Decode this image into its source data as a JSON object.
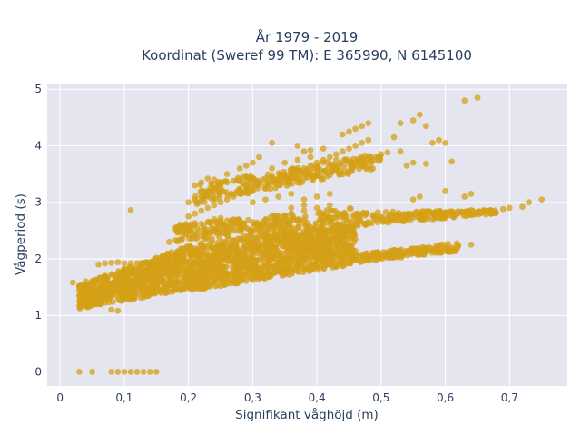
{
  "chart_data": {
    "type": "scatter",
    "title_line1": "År 1979 - 2019",
    "title_line2": "Koordinat (Sweref 99 TM): E 365990, N 6145100",
    "xlabel": "Signifikant våghöjd (m)",
    "ylabel": "Vågperiod (s)",
    "xlim": [
      -0.02,
      0.79
    ],
    "ylim": [
      -0.25,
      5.1
    ],
    "x_ticks": [
      0,
      0.1,
      0.2,
      0.3,
      0.4,
      0.5,
      0.6,
      0.7
    ],
    "x_tick_labels": [
      "0",
      "0,1",
      "0,2",
      "0,3",
      "0,4",
      "0,5",
      "0,6",
      "0,7"
    ],
    "y_ticks": [
      0,
      1,
      2,
      3,
      4,
      5
    ],
    "y_tick_labels": [
      "0",
      "1",
      "2",
      "3",
      "4",
      "5"
    ],
    "grid": true,
    "legend": "none",
    "marker_color": "#d4a017",
    "background_color": "#e5e5f0",
    "series": [
      {
        "points": [
          [
            0.03,
            0.0
          ],
          [
            0.05,
            0.0
          ],
          [
            0.08,
            0.0
          ],
          [
            0.09,
            0.0
          ],
          [
            0.1,
            0.0
          ],
          [
            0.11,
            0.0
          ],
          [
            0.12,
            0.0
          ],
          [
            0.13,
            0.0
          ],
          [
            0.14,
            0.0
          ],
          [
            0.15,
            0.0
          ],
          [
            0.02,
            1.58
          ],
          [
            0.03,
            1.52
          ],
          [
            0.04,
            1.6
          ],
          [
            0.05,
            1.55
          ],
          [
            0.06,
            1.48
          ],
          [
            0.07,
            1.45
          ],
          [
            0.08,
            1.1
          ],
          [
            0.09,
            1.08
          ],
          [
            0.06,
            1.9
          ],
          [
            0.07,
            1.92
          ],
          [
            0.08,
            1.93
          ],
          [
            0.09,
            1.94
          ],
          [
            0.1,
            1.92
          ],
          [
            0.11,
            1.92
          ],
          [
            0.12,
            1.92
          ],
          [
            0.13,
            1.93
          ],
          [
            0.14,
            1.94
          ],
          [
            0.15,
            1.95
          ],
          [
            0.16,
            1.96
          ],
          [
            0.07,
            1.7
          ],
          [
            0.08,
            1.73
          ],
          [
            0.09,
            1.72
          ],
          [
            0.1,
            1.73
          ],
          [
            0.11,
            1.75
          ],
          [
            0.12,
            1.76
          ],
          [
            0.13,
            1.77
          ],
          [
            0.11,
            2.86
          ],
          [
            0.17,
            2.3
          ],
          [
            0.18,
            2.33
          ],
          [
            0.19,
            2.35
          ],
          [
            0.2,
            2.55
          ],
          [
            0.21,
            2.6
          ],
          [
            0.22,
            2.62
          ],
          [
            0.23,
            2.65
          ],
          [
            0.24,
            2.7
          ],
          [
            0.25,
            2.72
          ],
          [
            0.2,
            2.75
          ],
          [
            0.21,
            2.8
          ],
          [
            0.22,
            2.85
          ],
          [
            0.23,
            2.9
          ],
          [
            0.24,
            2.95
          ],
          [
            0.25,
            3.0
          ],
          [
            0.26,
            3.05
          ],
          [
            0.27,
            3.1
          ],
          [
            0.28,
            3.15
          ],
          [
            0.29,
            3.18
          ],
          [
            0.3,
            3.2
          ],
          [
            0.2,
            3.0
          ],
          [
            0.21,
            3.05
          ],
          [
            0.22,
            3.1
          ],
          [
            0.23,
            3.2
          ],
          [
            0.24,
            3.25
          ],
          [
            0.25,
            3.3
          ],
          [
            0.26,
            3.35
          ],
          [
            0.27,
            3.38
          ],
          [
            0.28,
            3.4
          ],
          [
            0.29,
            3.45
          ],
          [
            0.21,
            3.3
          ],
          [
            0.22,
            3.35
          ],
          [
            0.23,
            3.42
          ],
          [
            0.24,
            3.4
          ],
          [
            0.26,
            3.5
          ],
          [
            0.28,
            3.6
          ],
          [
            0.29,
            3.65
          ],
          [
            0.3,
            3.7
          ],
          [
            0.31,
            3.8
          ],
          [
            0.32,
            3.3
          ],
          [
            0.33,
            3.35
          ],
          [
            0.34,
            3.4
          ],
          [
            0.35,
            3.45
          ],
          [
            0.36,
            3.5
          ],
          [
            0.37,
            3.55
          ],
          [
            0.38,
            3.6
          ],
          [
            0.39,
            3.65
          ],
          [
            0.4,
            3.7
          ],
          [
            0.41,
            3.75
          ],
          [
            0.42,
            3.8
          ],
          [
            0.43,
            3.85
          ],
          [
            0.44,
            3.9
          ],
          [
            0.45,
            3.95
          ],
          [
            0.46,
            4.0
          ],
          [
            0.47,
            4.05
          ],
          [
            0.48,
            4.1
          ],
          [
            0.33,
            3.6
          ],
          [
            0.35,
            3.7
          ],
          [
            0.37,
            3.75
          ],
          [
            0.39,
            3.8
          ],
          [
            0.41,
            3.7
          ],
          [
            0.43,
            3.75
          ],
          [
            0.45,
            3.7
          ],
          [
            0.47,
            3.72
          ],
          [
            0.49,
            3.75
          ],
          [
            0.33,
            4.05
          ],
          [
            0.37,
            4.0
          ],
          [
            0.38,
            3.9
          ],
          [
            0.39,
            3.92
          ],
          [
            0.41,
            3.95
          ],
          [
            0.44,
            4.2
          ],
          [
            0.45,
            4.25
          ],
          [
            0.46,
            4.3
          ],
          [
            0.47,
            4.35
          ],
          [
            0.48,
            4.4
          ],
          [
            0.5,
            3.85
          ],
          [
            0.51,
            3.88
          ],
          [
            0.52,
            4.15
          ],
          [
            0.53,
            3.9
          ],
          [
            0.54,
            3.65
          ],
          [
            0.55,
            4.45
          ],
          [
            0.56,
            4.55
          ],
          [
            0.57,
            4.35
          ],
          [
            0.58,
            4.05
          ],
          [
            0.59,
            4.1
          ],
          [
            0.6,
            4.05
          ],
          [
            0.61,
            3.72
          ],
          [
            0.53,
            4.4
          ],
          [
            0.55,
            3.7
          ],
          [
            0.57,
            3.68
          ],
          [
            0.63,
            4.8
          ],
          [
            0.65,
            4.85
          ],
          [
            0.3,
            3.0
          ],
          [
            0.32,
            3.05
          ],
          [
            0.34,
            3.1
          ],
          [
            0.36,
            3.15
          ],
          [
            0.38,
            3.05
          ],
          [
            0.4,
            3.1
          ],
          [
            0.42,
            3.15
          ],
          [
            0.36,
            2.9
          ],
          [
            0.38,
            2.95
          ],
          [
            0.55,
            3.05
          ],
          [
            0.56,
            3.1
          ],
          [
            0.6,
            3.2
          ],
          [
            0.63,
            3.1
          ],
          [
            0.64,
            3.15
          ],
          [
            0.64,
            2.25
          ],
          [
            0.7,
            2.9
          ],
          [
            0.73,
            3.0
          ],
          [
            0.75,
            3.05
          ],
          [
            0.72,
            2.92
          ],
          [
            0.69,
            2.88
          ],
          [
            0.67,
            2.86
          ],
          [
            0.66,
            2.85
          ],
          [
            0.22,
            2.4
          ],
          [
            0.24,
            2.5
          ],
          [
            0.26,
            2.55
          ],
          [
            0.28,
            2.6
          ],
          [
            0.3,
            2.65
          ],
          [
            0.32,
            2.7
          ],
          [
            0.34,
            2.75
          ],
          [
            0.36,
            2.8
          ],
          [
            0.38,
            2.85
          ],
          [
            0.4,
            2.9
          ],
          [
            0.42,
            2.95
          ],
          [
            0.44,
            2.55
          ],
          [
            0.46,
            2.6
          ],
          [
            0.48,
            2.65
          ],
          [
            0.5,
            2.7
          ],
          [
            0.52,
            2.72
          ],
          [
            0.54,
            2.75
          ],
          [
            0.56,
            2.78
          ],
          [
            0.58,
            2.8
          ],
          [
            0.6,
            2.82
          ],
          [
            0.62,
            2.84
          ],
          [
            0.64,
            2.86
          ],
          [
            0.44,
            2.0
          ],
          [
            0.46,
            2.02
          ],
          [
            0.48,
            2.05
          ],
          [
            0.5,
            2.08
          ],
          [
            0.52,
            2.1
          ],
          [
            0.54,
            2.12
          ],
          [
            0.56,
            2.15
          ],
          [
            0.58,
            2.18
          ],
          [
            0.6,
            2.2
          ],
          [
            0.62,
            2.23
          ]
        ]
      }
    ]
  }
}
